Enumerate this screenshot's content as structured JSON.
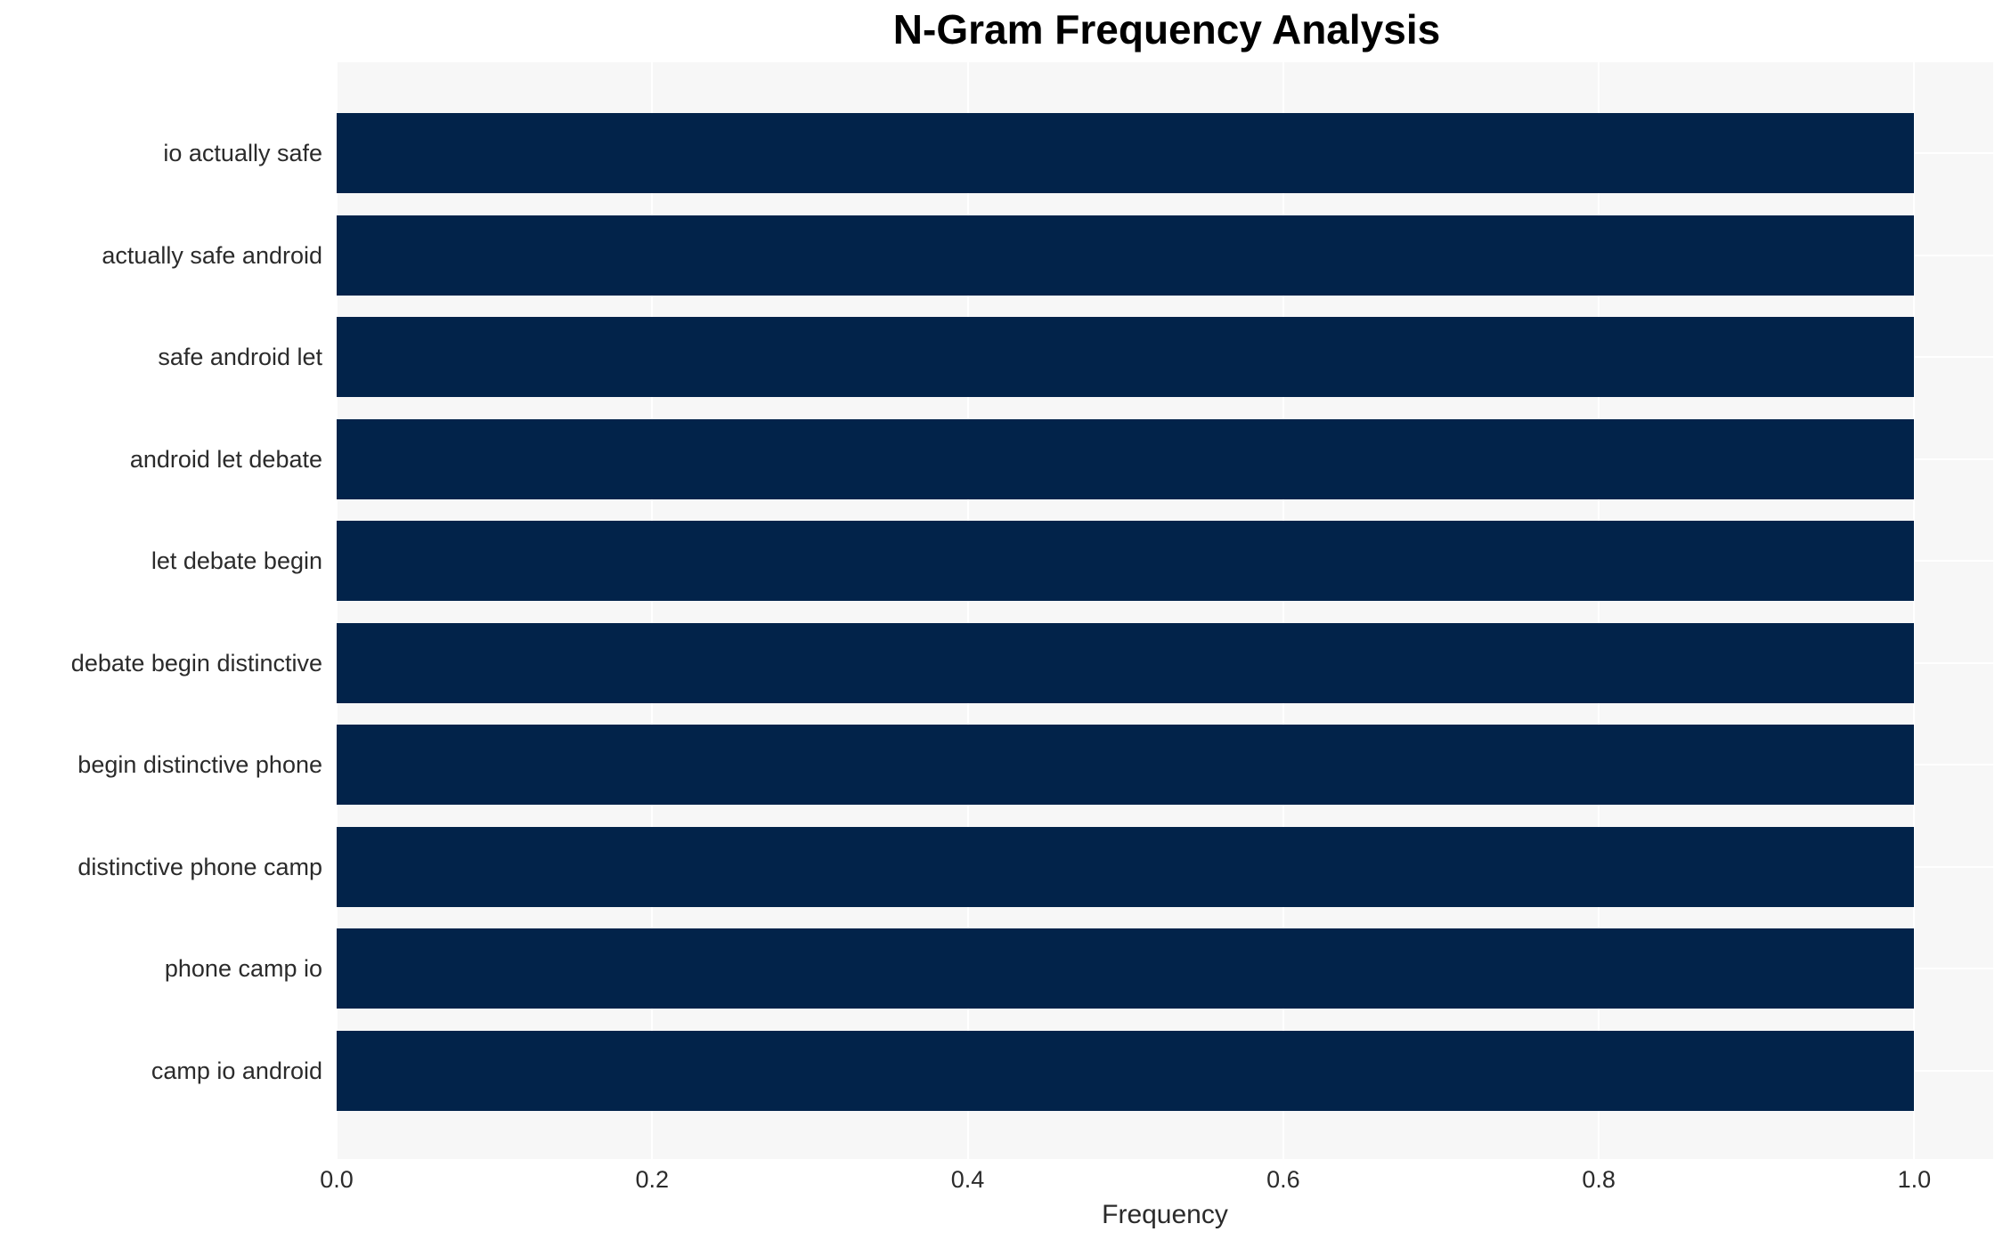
{
  "chart_data": {
    "type": "bar",
    "orientation": "horizontal",
    "title": "N-Gram Frequency Analysis",
    "xlabel": "Frequency",
    "ylabel": "",
    "categories": [
      "io actually safe",
      "actually safe android",
      "safe android let",
      "android let debate",
      "let debate begin",
      "debate begin distinctive",
      "begin distinctive phone",
      "distinctive phone camp",
      "phone camp io",
      "camp io android"
    ],
    "values": [
      1.0,
      1.0,
      1.0,
      1.0,
      1.0,
      1.0,
      1.0,
      1.0,
      1.0,
      1.0
    ],
    "xlim": [
      0,
      1.05
    ],
    "xticks": [
      0.0,
      0.2,
      0.4,
      0.6,
      0.8,
      1.0
    ],
    "xtick_labels": [
      "0.0",
      "0.2",
      "0.4",
      "0.6",
      "0.8",
      "1.0"
    ],
    "grid": true,
    "legend": false,
    "colors": {
      "bar": "#02234a",
      "plot_background": "#f7f7f7",
      "figure_background": "#ffffff",
      "gridline": "#ffffff",
      "tick_text": "#2b2b2b",
      "title_text": "#000000"
    }
  }
}
